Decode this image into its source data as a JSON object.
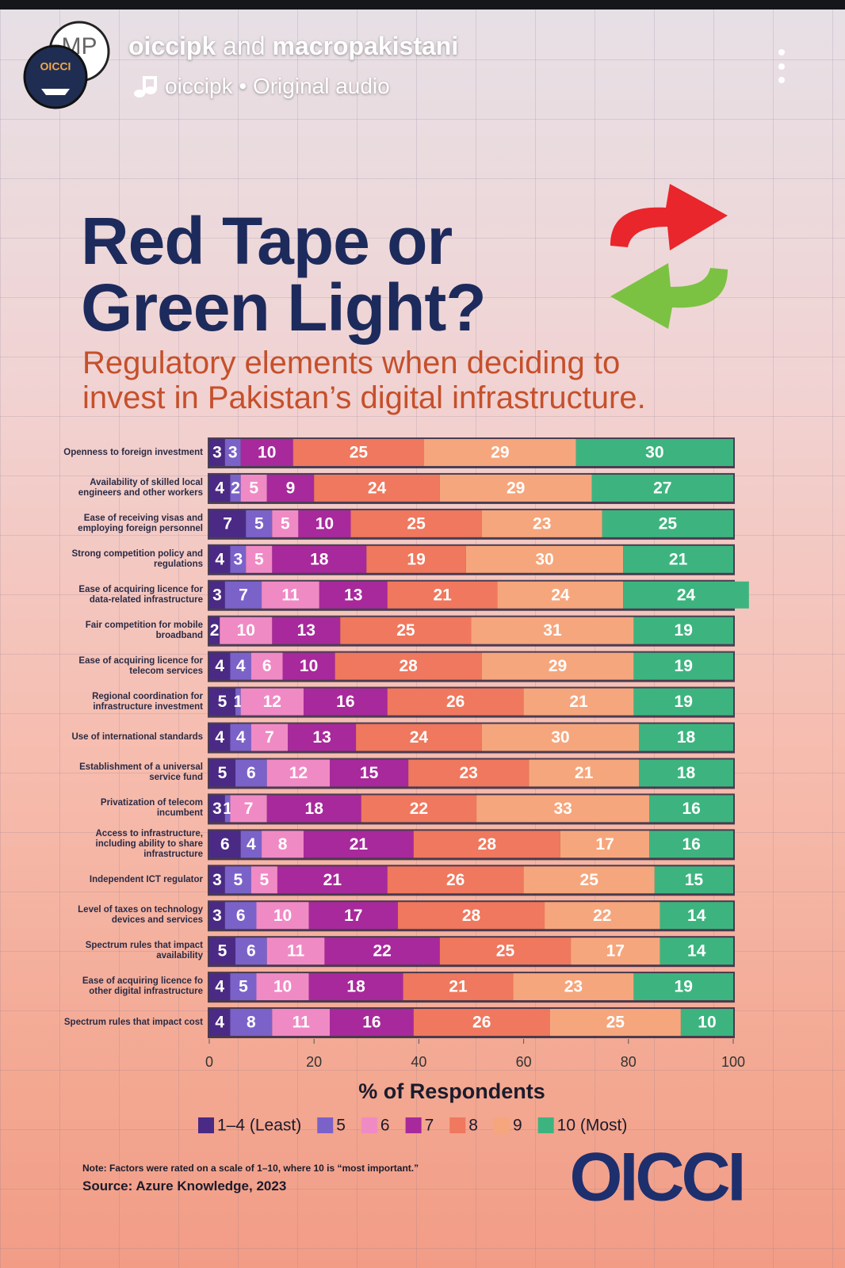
{
  "header": {
    "accounts": [
      "oiccipk",
      "macropakistani"
    ],
    "connector": "and",
    "audio": "oiccipk • Original audio",
    "avatar_left": "OICCI",
    "avatar_right": "MP"
  },
  "chart_data": {
    "type": "bar",
    "orientation": "horizontal",
    "stacked": true,
    "title": "Red Tape or Green Light?",
    "subtitle": "Regulatory elements when deciding to invest in Pakistan’s digital infrastructure.",
    "xlabel": "% of Respondents",
    "xlim": [
      0,
      100
    ],
    "xticks": [
      0,
      20,
      40,
      60,
      80,
      100
    ],
    "categories": [
      "Openness to foreign investment",
      "Availability of skilled local engineers and other workers",
      "Ease of receiving visas and employing foreign personnel",
      "Strong competition policy and regulations",
      "Ease of acquiring licence for data-related infrastructure",
      "Fair competition for mobile broadband",
      "Ease of acquiring licence for telecom services",
      "Regional coordination for infrastructure investment",
      "Use of international standards",
      "Establishment of a universal service fund",
      "Privatization of telecom incumbent",
      "Access to infrastructure, including ability to share infrastructure",
      "Independent ICT regulator",
      "Level of taxes on technology devices and services",
      "Spectrum rules that impact availability",
      "Ease of acquiring licence fo other digital infrastructure",
      "Spectrum rules that impact cost"
    ],
    "series": [
      {
        "name": "1–4 (Least)",
        "color": "#4a2a84",
        "values": [
          3,
          4,
          7,
          4,
          3,
          2,
          4,
          5,
          4,
          5,
          3,
          6,
          3,
          3,
          5,
          4,
          4
        ]
      },
      {
        "name": "5",
        "color": "#7b62c9",
        "values": [
          3,
          2,
          5,
          3,
          7,
          0,
          4,
          1,
          4,
          6,
          1,
          4,
          5,
          6,
          6,
          5,
          8
        ]
      },
      {
        "name": "6",
        "color": "#f08ac4",
        "values": [
          0,
          5,
          5,
          5,
          11,
          10,
          6,
          12,
          7,
          12,
          7,
          8,
          5,
          10,
          11,
          10,
          11
        ]
      },
      {
        "name": "7",
        "color": "#a8299b",
        "values": [
          10,
          9,
          10,
          18,
          13,
          13,
          10,
          16,
          13,
          15,
          18,
          21,
          21,
          17,
          22,
          18,
          16
        ]
      },
      {
        "name": "8",
        "color": "#ef785e",
        "values": [
          25,
          24,
          25,
          19,
          21,
          25,
          28,
          26,
          24,
          23,
          22,
          28,
          26,
          28,
          25,
          21,
          26
        ]
      },
      {
        "name": "9",
        "color": "#f6a67c",
        "values": [
          29,
          29,
          23,
          30,
          24,
          31,
          29,
          21,
          30,
          21,
          33,
          17,
          25,
          22,
          17,
          23,
          25
        ]
      },
      {
        "name": "10 (Most)",
        "color": "#3db47f",
        "values": [
          30,
          27,
          25,
          21,
          24,
          19,
          19,
          19,
          18,
          18,
          16,
          16,
          15,
          14,
          14,
          19,
          10
        ]
      }
    ],
    "legend": "bottom",
    "note": "Note: Factors were rated on a scale of 1–10, where 10 is “most important.”",
    "source": "Source: Azure Knowledge, 2023",
    "logo": "OICCI"
  }
}
